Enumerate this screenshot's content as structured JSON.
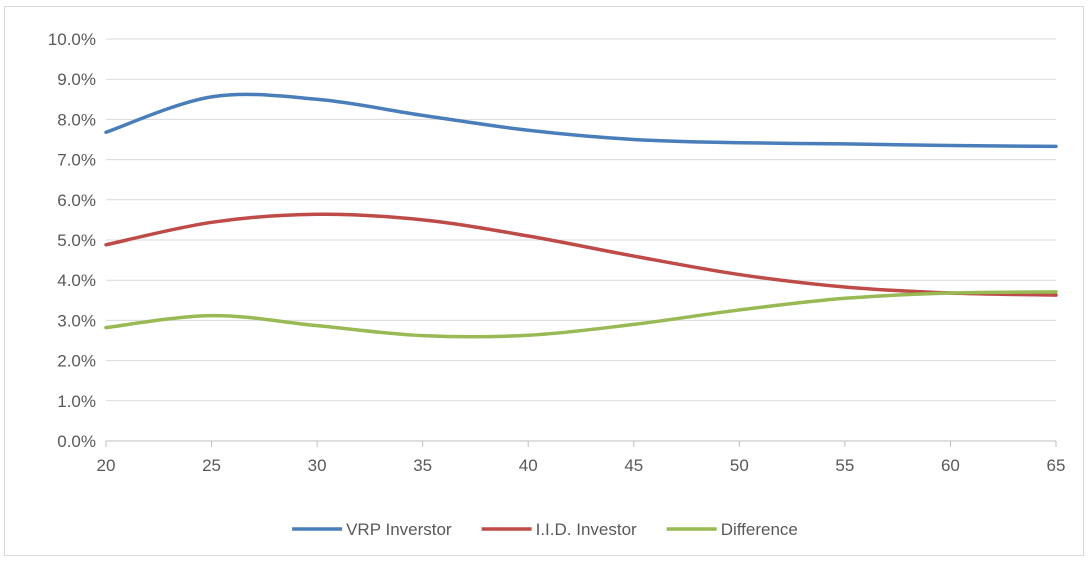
{
  "chart_data": {
    "type": "line",
    "title": "",
    "xlabel": "",
    "ylabel": "",
    "xlim": [
      20,
      65
    ],
    "ylim": [
      0.0,
      10.0
    ],
    "x_ticks": [
      "20",
      "25",
      "30",
      "35",
      "40",
      "45",
      "50",
      "55",
      "60",
      "65"
    ],
    "y_ticks": [
      "0.0%",
      "1.0%",
      "2.0%",
      "3.0%",
      "4.0%",
      "5.0%",
      "6.0%",
      "7.0%",
      "8.0%",
      "9.0%",
      "10.0%"
    ],
    "grid": "horizontal",
    "legend_position": "bottom",
    "x": [
      20,
      25,
      30,
      35,
      40,
      45,
      50,
      55,
      60,
      65
    ],
    "series": [
      {
        "name": "VRP Inverstor",
        "color": "#4a7ebb",
        "values": [
          7.68,
          8.56,
          8.5,
          8.1,
          7.73,
          7.5,
          7.42,
          7.39,
          7.35,
          7.33
        ]
      },
      {
        "name": "I.I.D. Investor",
        "color": "#be4b48",
        "values": [
          4.88,
          5.44,
          5.64,
          5.5,
          5.1,
          4.6,
          4.14,
          3.83,
          3.68,
          3.63
        ]
      },
      {
        "name": "Difference",
        "color": "#98b954",
        "values": [
          2.82,
          3.12,
          2.87,
          2.62,
          2.63,
          2.9,
          3.26,
          3.55,
          3.68,
          3.71
        ]
      }
    ]
  }
}
